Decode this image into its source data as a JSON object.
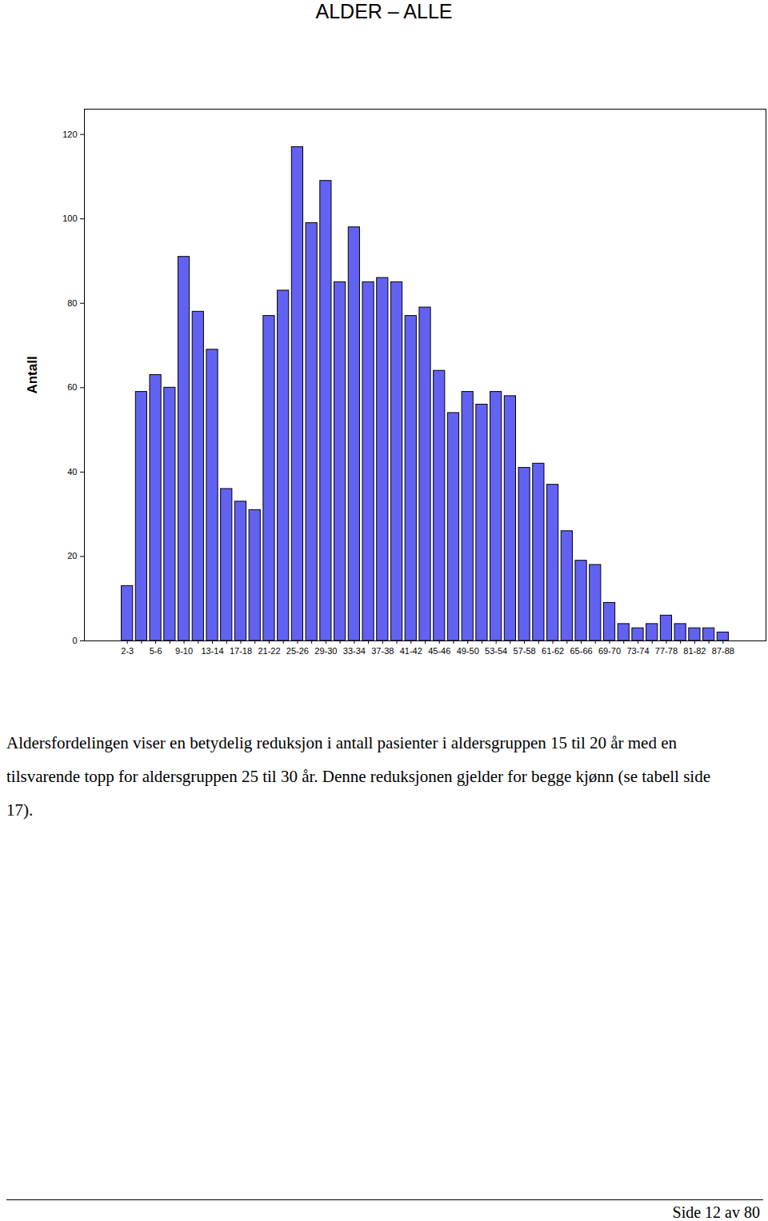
{
  "chart_data": {
    "type": "bar",
    "title": "ALDER – ALLE",
    "ylabel": "Antall",
    "categories": [
      "2-3",
      null,
      "5-6",
      null,
      "9-10",
      null,
      "13-14",
      null,
      "17-18",
      null,
      "21-22",
      null,
      "25-26",
      null,
      "29-30",
      null,
      "33-34",
      null,
      "37-38",
      null,
      "41-42",
      null,
      "45-46",
      null,
      "49-50",
      null,
      "53-54",
      null,
      "57-58",
      null,
      "61-62",
      null,
      "65-66",
      null,
      "69-70",
      null,
      "73-74",
      null,
      "77-78",
      null,
      "81-82",
      null,
      "87-88"
    ],
    "values": [
      13,
      59,
      63,
      60,
      91,
      78,
      69,
      36,
      33,
      31,
      77,
      83,
      117,
      99,
      109,
      85,
      98,
      85,
      86,
      85,
      77,
      79,
      64,
      54,
      59,
      56,
      59,
      58,
      41,
      42,
      37,
      26,
      19,
      18,
      9,
      4,
      3,
      4,
      6,
      4,
      3,
      3,
      2
    ],
    "color": "#6262f2",
    "ylim": [
      0,
      126
    ],
    "yticks": [
      0,
      20,
      40,
      60,
      80,
      100,
      120
    ],
    "grid": false
  },
  "caption": "Aldersfordelingen viser en betydelig reduksjon i antall pasienter i aldersgruppen 15 til 20 år med en tilsvarende topp for aldersgruppen 25 til 30 år. Denne reduksjonen gjelder for begge kjønn (se tabell side 17).",
  "footer": "Side 12 av 80"
}
